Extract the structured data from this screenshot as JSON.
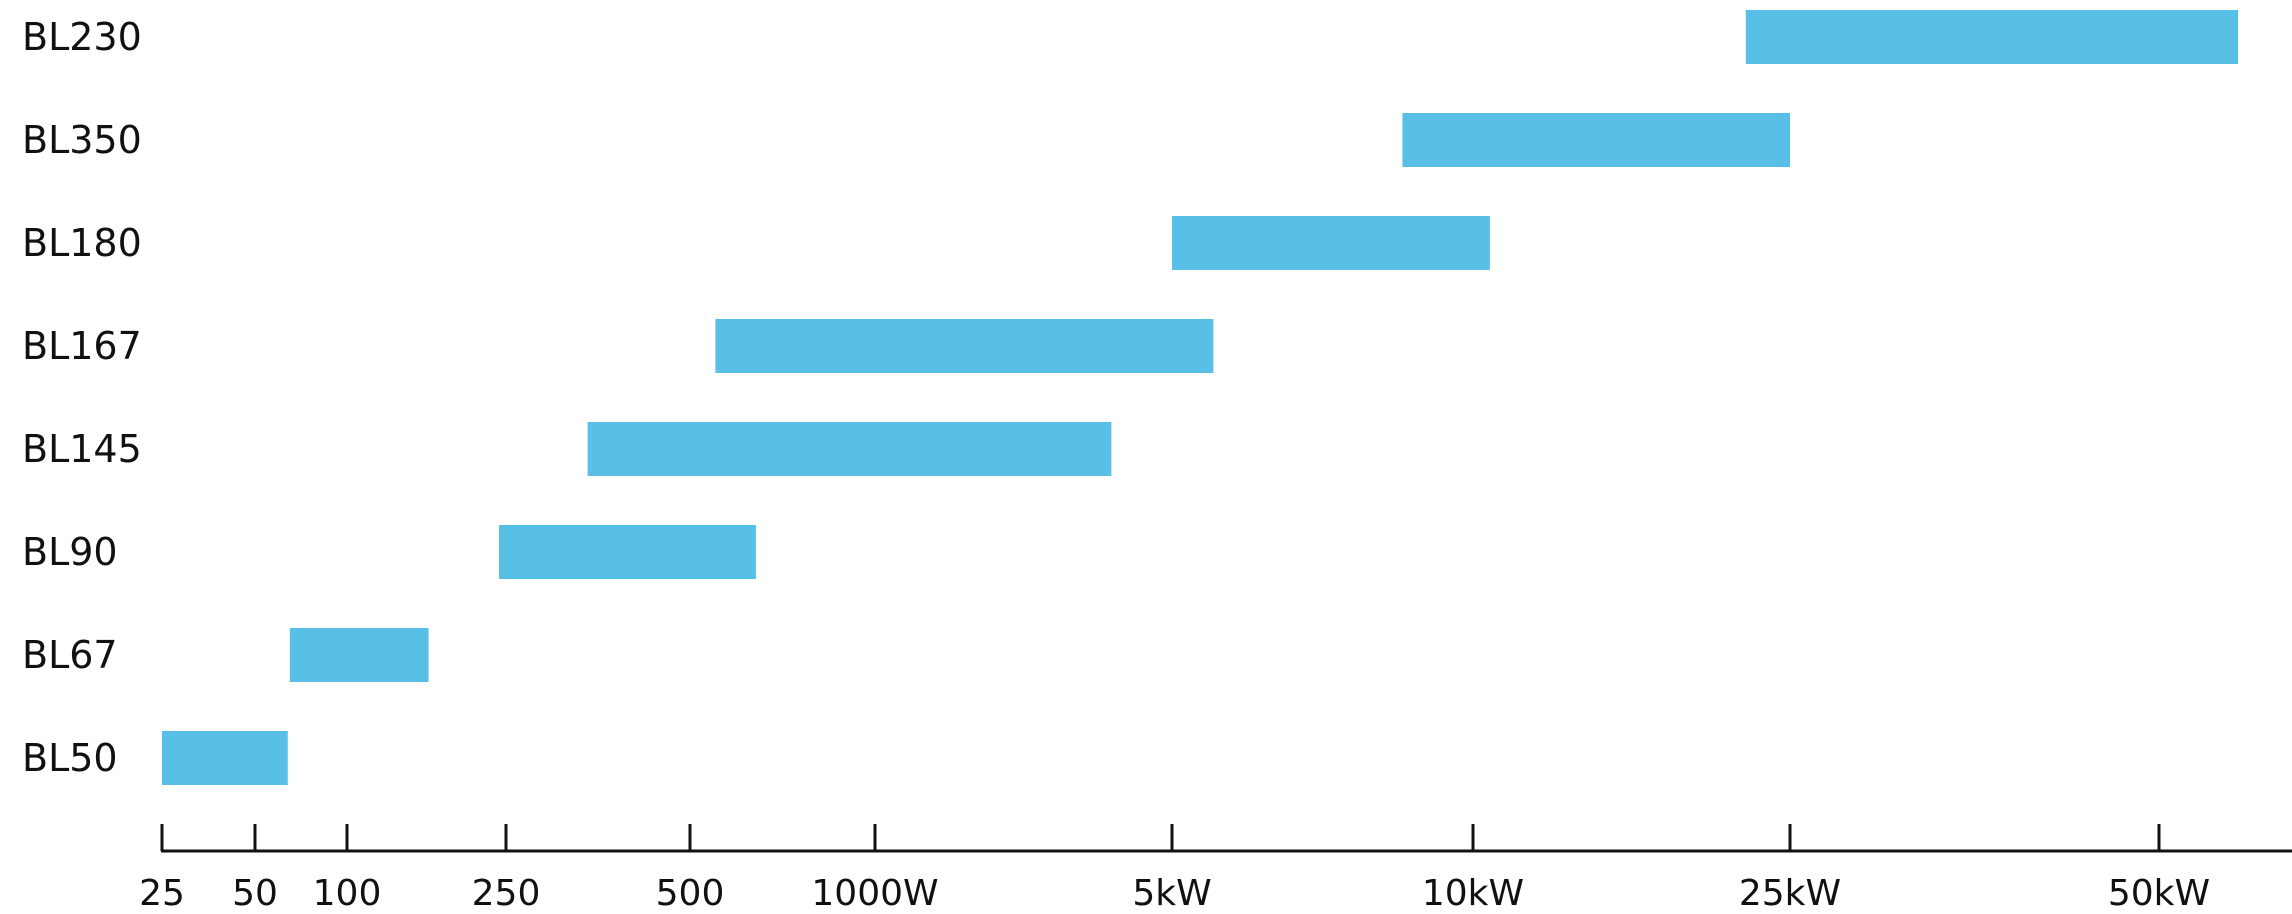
{
  "chart_data": {
    "type": "bar",
    "orientation": "horizontal-range",
    "x_scale": "log",
    "xlabel": "",
    "ylabel": "",
    "title": "",
    "grid": false,
    "legend": "none",
    "bar_color": "#58bfe6",
    "xlim": [
      25,
      62000
    ],
    "x_ticks": [
      {
        "value": 25,
        "label": "25"
      },
      {
        "value": 50,
        "label": "50"
      },
      {
        "value": 100,
        "label": "100"
      },
      {
        "value": 250,
        "label": "250"
      },
      {
        "value": 500,
        "label": "500"
      },
      {
        "value": 1000,
        "label": "1000W"
      },
      {
        "value": 5000,
        "label": "5kW"
      },
      {
        "value": 10000,
        "label": "10kW"
      },
      {
        "value": 25000,
        "label": "25kW"
      },
      {
        "value": 50000,
        "label": "50kW"
      }
    ],
    "categories": [
      "BL230",
      "BL350",
      "BL180",
      "BL167",
      "BL145",
      "BL90",
      "BL67",
      "BL50"
    ],
    "ranges": [
      {
        "label": "BL230",
        "start": 22000,
        "end": 58000
      },
      {
        "label": "BL350",
        "start": 8500,
        "end": 25000
      },
      {
        "label": "BL180",
        "start": 5000,
        "end": 10500
      },
      {
        "label": "BL167",
        "start": 550,
        "end": 5500
      },
      {
        "label": "BL145",
        "start": 340,
        "end": 3600
      },
      {
        "label": "BL90",
        "start": 240,
        "end": 640
      },
      {
        "label": "BL67",
        "start": 65,
        "end": 160
      },
      {
        "label": "BL50",
        "start": 25,
        "end": 64
      }
    ]
  }
}
